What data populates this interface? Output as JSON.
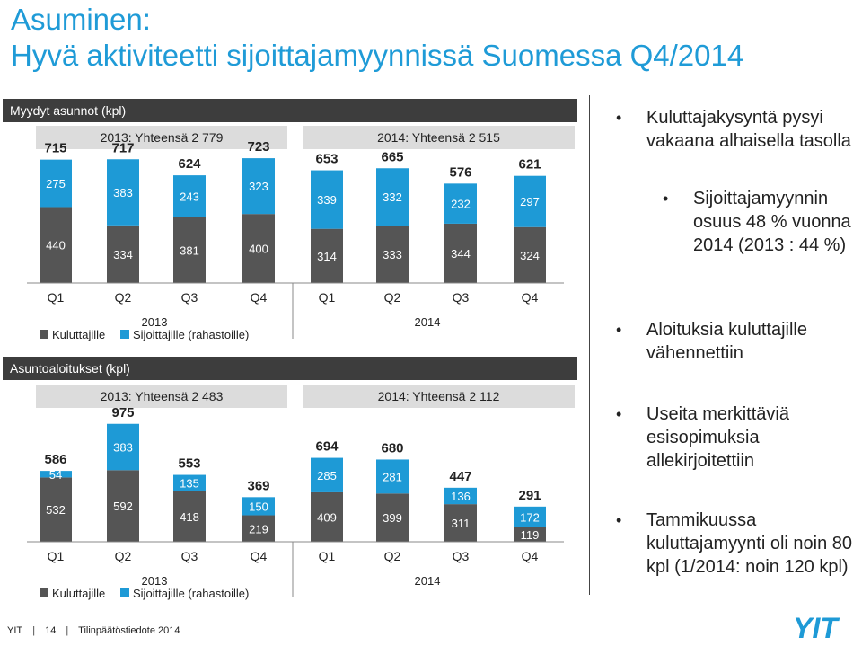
{
  "title_line1": "Asuminen:",
  "title_line2": "Hyvä aktiviteetti sijoittajamyynnissä Suomessa Q4/2014",
  "colors": {
    "consumer": "#555555",
    "investor": "#1e9ad6",
    "title": "#1f9bd7",
    "header": "#3d3d3d",
    "totals_bg": "#dcdcdc"
  },
  "chart_data": [
    {
      "type": "bar",
      "title": "Myydyt asunnot (kpl)",
      "total_2013": "2013: Yhteensä 2 779",
      "total_2014": "2014: Yhteensä 2 515",
      "categories": [
        "Q1",
        "Q2",
        "Q3",
        "Q4",
        "Q1",
        "Q2",
        "Q3",
        "Q4"
      ],
      "year_labels": [
        "2013",
        "2014"
      ],
      "series": [
        {
          "name": "Kuluttajille",
          "values": [
            440,
            334,
            381,
            400,
            314,
            333,
            344,
            324
          ]
        },
        {
          "name": "Sijoittajille (rahastoille)",
          "values": [
            275,
            383,
            243,
            323,
            339,
            332,
            232,
            297
          ]
        }
      ],
      "totals": [
        715,
        717,
        624,
        723,
        653,
        665,
        576,
        621
      ],
      "ylim": [
        0,
        760
      ]
    },
    {
      "type": "bar",
      "title": "Asuntoaloitukset (kpl)",
      "total_2013": "2013: Yhteensä 2 483",
      "total_2014": "2014: Yhteensä 2 112",
      "categories": [
        "Q1",
        "Q2",
        "Q3",
        "Q4",
        "Q1",
        "Q2",
        "Q3",
        "Q4"
      ],
      "year_labels": [
        "2013",
        "2014"
      ],
      "series": [
        {
          "name": "Kuluttajille",
          "values": [
            532,
            592,
            418,
            219,
            409,
            399,
            311,
            119
          ]
        },
        {
          "name": "Sijoittajille (rahastoille)",
          "values": [
            54,
            383,
            135,
            150,
            285,
            281,
            136,
            172
          ]
        }
      ],
      "totals": [
        586,
        975,
        553,
        369,
        694,
        680,
        447,
        291
      ],
      "ylim": [
        0,
        1040
      ]
    }
  ],
  "bullets": [
    "Kuluttajakysyntä pysyi vakaana alhaisella tasolla",
    "Sijoittajamyynnin osuus 48 % vuonna 2014 (2013 : 44 %)",
    "Aloituksia kuluttajille vähennettiin",
    "Useita merkittäviä esisopimuksia allekirjoitettiin",
    "Tammikuussa kuluttajamyynti oli noin 80 kpl (1/2014: noin 120 kpl)"
  ],
  "footer": {
    "brand": "YIT",
    "page": "14",
    "doc": "Tilinpäätöstiedote 2014"
  },
  "logo_text": "YIT"
}
